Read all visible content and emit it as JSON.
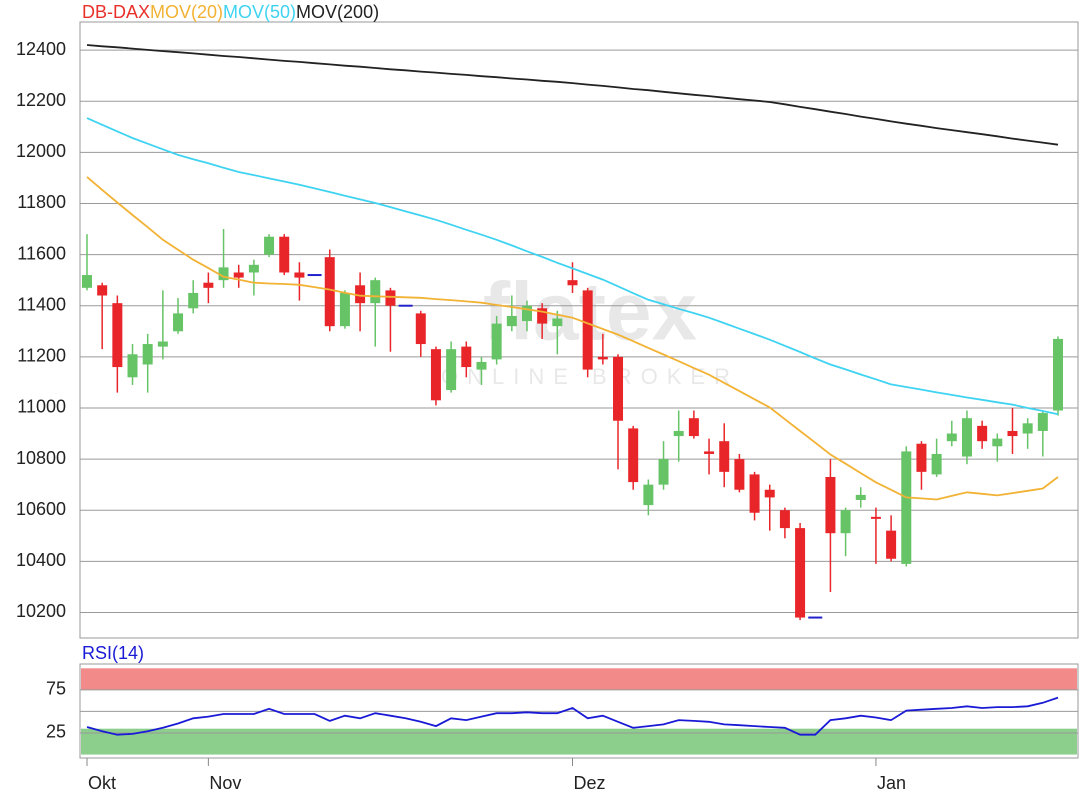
{
  "chart_data": [
    {
      "type": "candlestick",
      "watermark": {
        "title": "flatex",
        "subtitle": "ONLINE BROKER"
      },
      "categories": [
        "Okt",
        null,
        null,
        null,
        null,
        null,
        null,
        null,
        "Nov",
        null,
        null,
        null,
        null,
        null,
        null,
        null,
        null,
        null,
        null,
        null,
        null,
        null,
        null,
        null,
        null,
        null,
        null,
        null,
        null,
        null,
        null,
        null,
        "Dez",
        null,
        null,
        null,
        null,
        null,
        null,
        null,
        null,
        null,
        null,
        null,
        null,
        null,
        null,
        null,
        null,
        null,
        null,
        null,
        "Jan",
        null,
        null,
        null,
        null,
        null,
        null,
        null,
        null,
        null,
        null,
        null,
        null
      ],
      "ylim": [
        10100,
        12510
      ],
      "yticks": [
        10200,
        10400,
        10600,
        10800,
        11000,
        11200,
        11400,
        11600,
        11800,
        12000,
        12200,
        12400
      ],
      "grid": true,
      "series": [
        {
          "name": "DB-DAX",
          "color": "#e8312a",
          "up_color": "#66c466",
          "down_color": "#e8262a",
          "flat_color": "#2222cc",
          "open": [
            11470,
            11480,
            11410,
            11120,
            11170,
            11240,
            11300,
            11390,
            11490,
            11500,
            11530,
            11530,
            11600,
            11670,
            11530,
            11520,
            11590,
            11320,
            11480,
            11410,
            11460,
            11400,
            11370,
            11230,
            11070,
            11240,
            11150,
            11190,
            11320,
            11340,
            11390,
            11320,
            11500,
            11460,
            11200,
            11200,
            10920,
            10620,
            10700,
            10890,
            10960,
            10830,
            10870,
            10800,
            10740,
            10680,
            10600,
            10530,
            10180,
            10730,
            10510,
            10640,
            10570,
            10520,
            10390,
            10860,
            10740,
            10870,
            10810,
            10930,
            10850,
            10910,
            10900,
            10910,
            10990
          ],
          "high": [
            11680,
            11490,
            11440,
            11250,
            11290,
            11460,
            11430,
            11500,
            11530,
            11700,
            11560,
            11580,
            11680,
            11680,
            11570,
            11520,
            11620,
            11460,
            11530,
            11510,
            11470,
            11400,
            11380,
            11240,
            11260,
            11260,
            11200,
            11360,
            11440,
            11420,
            11410,
            11380,
            11570,
            11470,
            11290,
            11210,
            10930,
            10720,
            10870,
            10990,
            10990,
            10880,
            10940,
            10820,
            10750,
            10700,
            10610,
            10550,
            10180,
            10800,
            10610,
            10690,
            10610,
            10580,
            10850,
            10870,
            10880,
            10950,
            10990,
            10950,
            10900,
            11000,
            10960,
            10990,
            11280
          ],
          "low": [
            11460,
            11230,
            11060,
            11090,
            11060,
            11190,
            11290,
            11370,
            11410,
            11470,
            11470,
            11440,
            11590,
            11520,
            11420,
            11520,
            11300,
            11310,
            11300,
            11240,
            11220,
            11400,
            11200,
            11010,
            11060,
            11120,
            11090,
            11170,
            11300,
            11300,
            11270,
            11210,
            11450,
            11120,
            11170,
            10760,
            10680,
            10580,
            10680,
            10790,
            10880,
            10740,
            10690,
            10670,
            10560,
            10520,
            10490,
            10170,
            10180,
            10280,
            10420,
            10610,
            10390,
            10400,
            10380,
            10680,
            10730,
            10850,
            10780,
            10840,
            10790,
            10820,
            10840,
            10810,
            10970
          ],
          "close": [
            11520,
            11440,
            11160,
            11210,
            11250,
            11260,
            11370,
            11450,
            11470,
            11550,
            11510,
            11560,
            11670,
            11530,
            11510,
            11520,
            11320,
            11450,
            11410,
            11500,
            11400,
            11400,
            11250,
            11030,
            11230,
            11160,
            11180,
            11330,
            11360,
            11400,
            11330,
            11350,
            11480,
            11150,
            11190,
            10950,
            10710,
            10700,
            10800,
            10910,
            10890,
            10820,
            10750,
            10680,
            10590,
            10650,
            10530,
            10180,
            10180,
            10510,
            10600,
            10660,
            10565,
            10410,
            10830,
            10750,
            10820,
            10900,
            10960,
            10870,
            10880,
            10890,
            10940,
            10980,
            11270
          ]
        },
        {
          "name": "MOV(20)",
          "color": "#f2b234",
          "values": [
            11904,
            11853,
            11804,
            11755,
            11707,
            11658,
            11619,
            11580,
            11547,
            11513,
            11502,
            11490,
            11487,
            11485,
            11482,
            11473,
            11463,
            11451,
            11439,
            11437,
            11435,
            11433,
            11431,
            11426,
            11422,
            11417,
            11412,
            11403,
            11395,
            11386,
            11377,
            11365,
            11353,
            11331,
            11309,
            11287,
            11261,
            11235,
            11209,
            11183,
            11156,
            11130,
            11098,
            11066,
            11034,
            11002,
            10956,
            10910,
            10864,
            10818,
            10782,
            10745,
            10709,
            10680,
            10650,
            10646,
            10642,
            10656,
            10670,
            10664,
            10658,
            10667,
            10676,
            10685,
            10730
          ]
        },
        {
          "name": "MOV(50)",
          "color": "#3fd3f2",
          "values": [
            12134,
            12108,
            12082,
            12056,
            12034,
            12012,
            11990,
            11973,
            11957,
            11940,
            11923,
            11911,
            11898,
            11886,
            11873,
            11859,
            11845,
            11830,
            11816,
            11802,
            11786,
            11769,
            11753,
            11736,
            11717,
            11697,
            11678,
            11658,
            11636,
            11613,
            11591,
            11568,
            11546,
            11524,
            11502,
            11476,
            11449,
            11423,
            11406,
            11388,
            11371,
            11353,
            11332,
            11310,
            11289,
            11267,
            11243,
            11219,
            11194,
            11170,
            11151,
            11131,
            11112,
            11092,
            11082,
            11072,
            11061,
            11051,
            11041,
            11032,
            11022,
            11013,
            11000,
            10988,
            10975
          ]
        },
        {
          "name": "MOV(200)",
          "color": "#222222",
          "values": [
            12420,
            12415,
            12411,
            12406,
            12401,
            12396,
            12392,
            12387,
            12382,
            12377,
            12373,
            12368,
            12363,
            12358,
            12354,
            12349,
            12344,
            12339,
            12335,
            12330,
            12325,
            12321,
            12316,
            12312,
            12307,
            12303,
            12298,
            12294,
            12289,
            12285,
            12280,
            12276,
            12271,
            12265,
            12260,
            12254,
            12248,
            12243,
            12237,
            12231,
            12225,
            12220,
            12214,
            12208,
            12203,
            12197,
            12188,
            12178,
            12169,
            12159,
            12150,
            12140,
            12131,
            12121,
            12112,
            12104,
            12095,
            12087,
            12079,
            12071,
            12063,
            12054,
            12046,
            12038,
            12030
          ]
        }
      ]
    },
    {
      "type": "line",
      "title": "RSI(14)",
      "ylim": [
        -4,
        105
      ],
      "yticks": [
        25,
        75
      ],
      "ygrid": [
        25,
        50,
        75
      ],
      "zones": [
        {
          "from": 75,
          "to": 100,
          "color": "#f28a8a"
        },
        {
          "from": 0,
          "to": 30,
          "color": "#8ccf8c"
        }
      ],
      "series": [
        {
          "name": "RSI(14)",
          "color": "#1a1ad6",
          "values": [
            32,
            27,
            23,
            24,
            27,
            31,
            36,
            42,
            44,
            47,
            47,
            47,
            53,
            47,
            47,
            47,
            39,
            45,
            42,
            48,
            45,
            42,
            38,
            33,
            42,
            40,
            44,
            48,
            48,
            49,
            48,
            48,
            54,
            42,
            45,
            38,
            31,
            33,
            35,
            40,
            39,
            38,
            35,
            34,
            33,
            32,
            31,
            23,
            23,
            40,
            42,
            45,
            43,
            40,
            51,
            52,
            53,
            54,
            56,
            54,
            55,
            55,
            56,
            60,
            66
          ]
        }
      ]
    }
  ]
}
